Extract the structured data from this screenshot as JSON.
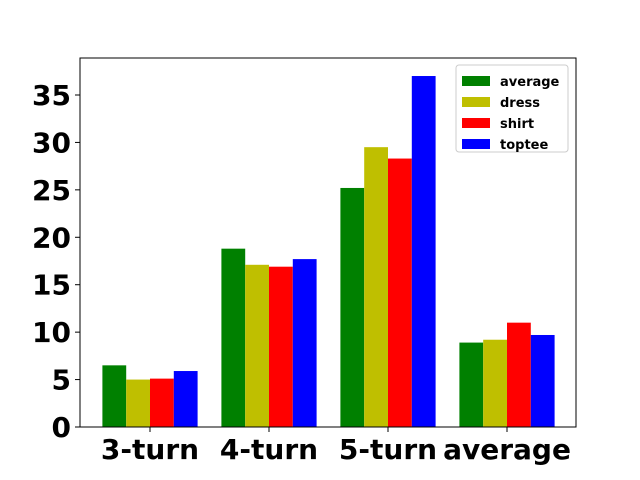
{
  "chart_data": {
    "type": "bar",
    "categories": [
      "3-turn",
      "4-turn",
      "5-turn",
      "average"
    ],
    "series": [
      {
        "name": "average",
        "color": "#008000",
        "values": [
          6.5,
          18.8,
          25.2,
          8.9
        ]
      },
      {
        "name": "dress",
        "color": "#bfbf00",
        "values": [
          5.0,
          17.1,
          29.5,
          9.2
        ]
      },
      {
        "name": "shirt",
        "color": "#ff0000",
        "values": [
          5.1,
          16.9,
          28.3,
          11.0
        ]
      },
      {
        "name": "toptee",
        "color": "#0000ff",
        "values": [
          5.9,
          17.7,
          37.0,
          9.7
        ]
      }
    ],
    "yticks": [
      0,
      5,
      10,
      15,
      20,
      25,
      30,
      35
    ],
    "ylim": [
      0,
      38.9
    ],
    "title": "",
    "xlabel": "",
    "ylabel": "",
    "grid": false,
    "legend_position": "top-right"
  }
}
